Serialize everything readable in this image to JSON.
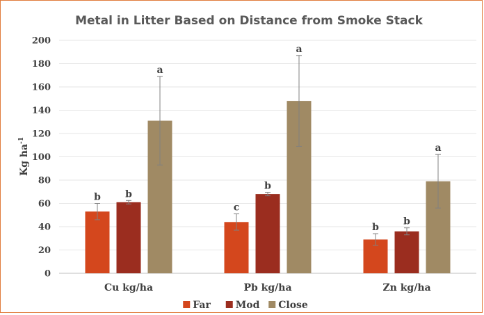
{
  "chart_data": {
    "type": "bar",
    "title": "Metal in Litter Based on Distance from Smoke Stack",
    "ylabel": "Kg ha",
    "ylabel_sup": "-1",
    "xlabel": "",
    "ylim": [
      0,
      200
    ],
    "ytick_step": 20,
    "grid": true,
    "legend_position": "bottom",
    "categories": [
      "Cu kg/ha",
      "Pb kg/ha",
      "Zn kg/ha"
    ],
    "series": [
      {
        "name": "Far",
        "color": "#d4471d",
        "values": [
          53,
          44,
          29
        ],
        "errors": [
          7,
          7,
          5
        ],
        "letters": [
          "b",
          "c",
          "b"
        ]
      },
      {
        "name": "Mod",
        "color": "#9b2d1f",
        "values": [
          61,
          68,
          36
        ],
        "errors": [
          1.5,
          1.5,
          3
        ],
        "letters": [
          "b",
          "b",
          "b"
        ]
      },
      {
        "name": "Close",
        "color": "#a08a64",
        "values": [
          131,
          148,
          79
        ],
        "errors": [
          38,
          39,
          23
        ],
        "letters": [
          "a",
          "a",
          "a"
        ]
      }
    ]
  }
}
